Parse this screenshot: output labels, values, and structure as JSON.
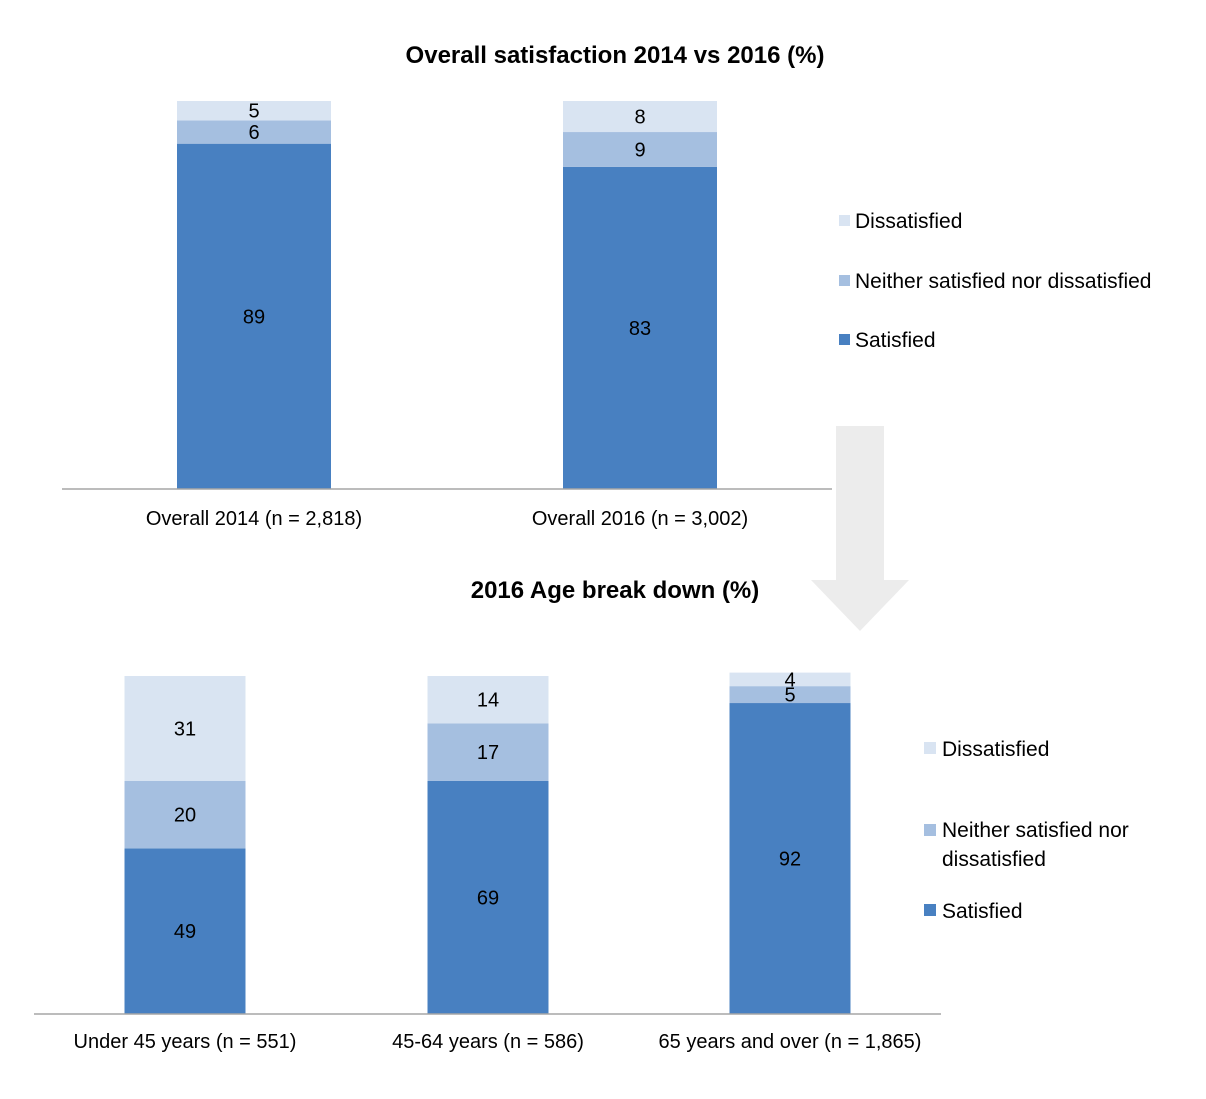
{
  "colors": {
    "dissatisfied": "#d9e4f2",
    "neither": "#a5bfe0",
    "satisfied": "#4880c1",
    "arrow": "#ececec",
    "axis": "#a6a6a6"
  },
  "chart_data": [
    {
      "type": "bar",
      "stacked": true,
      "title": "Overall satisfaction 2014 vs 2016 (%)",
      "categories": [
        "Overall 2014 (n = 2,818)",
        "Overall 2016 (n = 3,002)"
      ],
      "series": [
        {
          "name": "Satisfied",
          "color": "#4880c1",
          "values": [
            89,
            83
          ]
        },
        {
          "name": "Neither satisfied nor dissatisfied",
          "color": "#a5bfe0",
          "values": [
            6,
            9
          ]
        },
        {
          "name": "Dissatisfied",
          "color": "#d9e4f2",
          "values": [
            5,
            8
          ]
        }
      ],
      "legend": [
        "Dissatisfied",
        "Neither satisfied nor dissatisfied",
        "Satisfied"
      ],
      "legend_position": "right",
      "ylim": [
        0,
        100
      ],
      "grid": false
    },
    {
      "type": "bar",
      "stacked": true,
      "title": "2016 Age break down (%)",
      "categories": [
        "Under 45 years (n = 551)",
        "45-64 years (n = 586)",
        "65 years and over (n = 1,865)"
      ],
      "series": [
        {
          "name": "Satisfied",
          "color": "#4880c1",
          "values": [
            49,
            69,
            92
          ]
        },
        {
          "name": "Neither satisfied nor dissatisfied",
          "color": "#a5bfe0",
          "values": [
            20,
            17,
            5
          ]
        },
        {
          "name": "Dissatisfied",
          "color": "#d9e4f2",
          "values": [
            31,
            14,
            4
          ]
        }
      ],
      "legend": [
        "Dissatisfied",
        "Neither satisfied nor",
        "dissatisfied",
        "Satisfied"
      ],
      "legend_position": "right",
      "ylim": [
        0,
        100
      ],
      "grid": false
    }
  ]
}
